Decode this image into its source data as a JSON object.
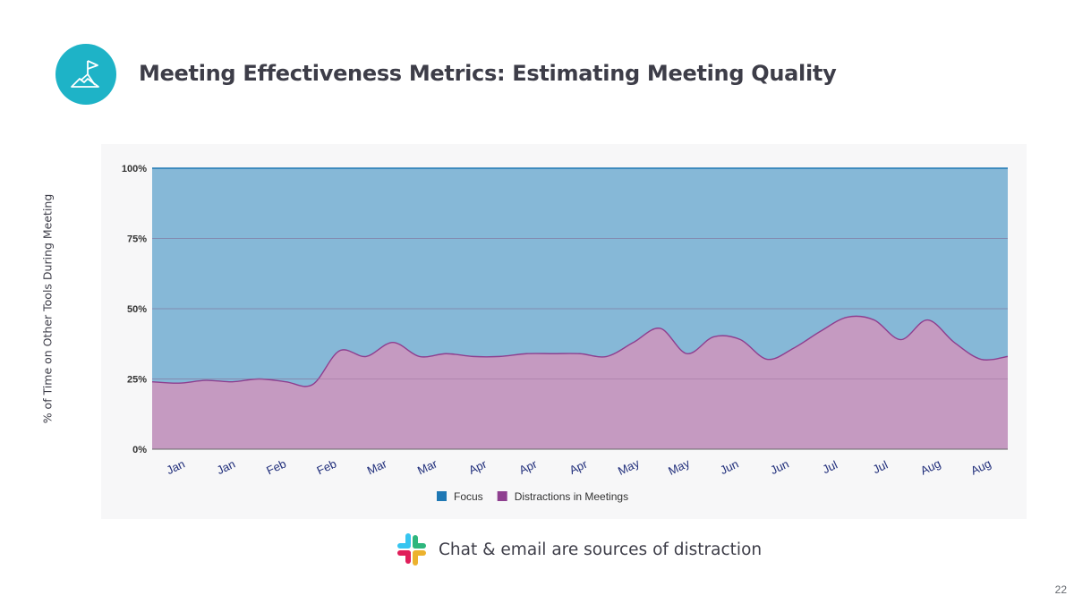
{
  "header": {
    "title": "Meeting Effectiveness Metrics: Estimating Meeting Quality",
    "logo_icon": "flag-on-mountain-icon"
  },
  "chart_data": {
    "type": "area",
    "stacked": true,
    "ylabel": "% of Time on Other Tools During Meeting",
    "ylim": [
      0,
      100
    ],
    "yticks": [
      "0%",
      "25%",
      "50%",
      "75%",
      "100%"
    ],
    "grid": true,
    "legend_position": "bottom",
    "x_tick_labels": [
      "Jan",
      "Jan",
      "Feb",
      "Feb",
      "Mar",
      "Mar",
      "Apr",
      "Apr",
      "Apr",
      "May",
      "May",
      "Jun",
      "Jun",
      "Jul",
      "Jul",
      "Aug",
      "Aug"
    ],
    "series": [
      {
        "name": "Focus",
        "color": "#1f78b4",
        "fill": "#86b8d7",
        "values": [
          76,
          76.5,
          75.5,
          76,
          75,
          76,
          77,
          65,
          67,
          62,
          67,
          66,
          67,
          67,
          66,
          66,
          66,
          67,
          62,
          57,
          66,
          60,
          61,
          68,
          64,
          58,
          53,
          54,
          61,
          54,
          62,
          68,
          67
        ]
      },
      {
        "name": "Distractions in Meetings",
        "color": "#8e3f8f",
        "fill": "#c59ac1",
        "values": [
          24,
          23.5,
          24.5,
          24,
          25,
          24,
          23,
          35,
          33,
          38,
          33,
          34,
          33,
          33,
          34,
          34,
          34,
          33,
          38,
          43,
          34,
          40,
          39,
          32,
          36,
          42,
          47,
          46,
          39,
          46,
          38,
          32,
          33
        ]
      }
    ]
  },
  "caption": {
    "text": "Chat & email are sources of distraction",
    "icon": "slack-logo-icon"
  },
  "page_number": "22"
}
